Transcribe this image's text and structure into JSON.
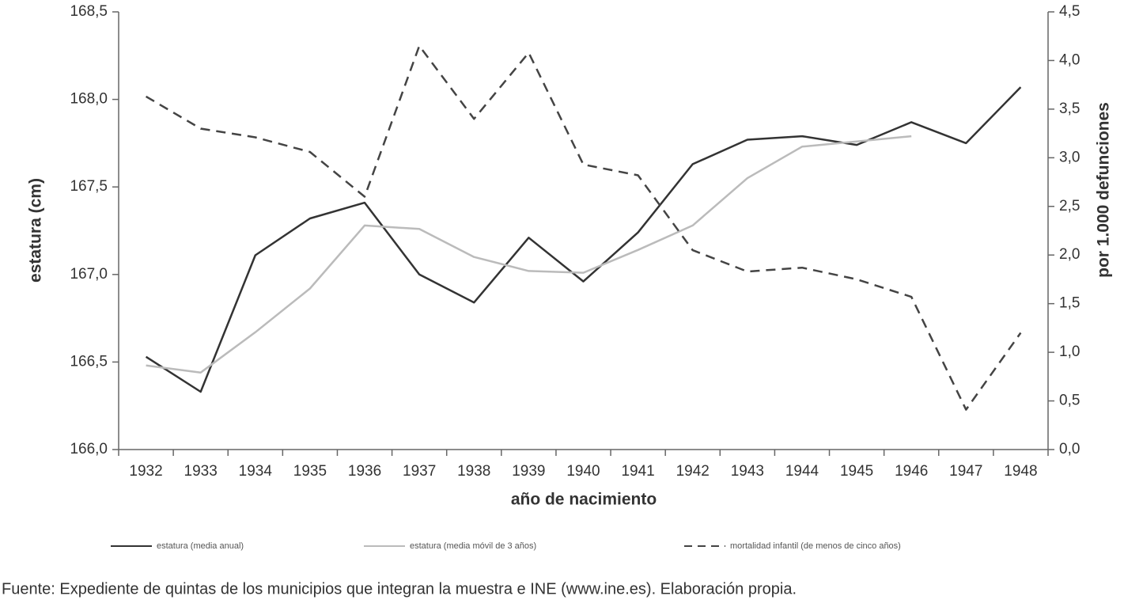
{
  "chart_data": {
    "type": "line",
    "categories": [
      "1932",
      "1933",
      "1934",
      "1935",
      "1936",
      "1937",
      "1938",
      "1939",
      "1940",
      "1941",
      "1942",
      "1943",
      "1944",
      "1945",
      "1946",
      "1947",
      "1948"
    ],
    "x_label": "año de nacimiento",
    "y_label": "estatura (cm)",
    "y2_label": "por 1.000 defunciones",
    "ylim": [
      166.0,
      168.5
    ],
    "yticks": [
      {
        "value": 166.0,
        "label": "166,0"
      },
      {
        "value": 166.5,
        "label": "166,5"
      },
      {
        "value": 167.0,
        "label": "167,0"
      },
      {
        "value": 167.5,
        "label": "167,5"
      },
      {
        "value": 168.0,
        "label": "168,0"
      },
      {
        "value": 168.5,
        "label": "168,5"
      }
    ],
    "y2lim": [
      0,
      4.5
    ],
    "y2ticks": [
      {
        "value": 0,
        "label": "0,0"
      },
      {
        "value": 0.5,
        "label": "0,5"
      },
      {
        "value": 1,
        "label": "1,0"
      },
      {
        "value": 1.5,
        "label": "1,5"
      },
      {
        "value": 2,
        "label": "2,0"
      },
      {
        "value": 2.5,
        "label": "2,5"
      },
      {
        "value": 3,
        "label": "3,0"
      },
      {
        "value": 3.5,
        "label": "3,5"
      },
      {
        "value": 4,
        "label": "4,0"
      },
      {
        "value": 4.5,
        "label": "4,5"
      }
    ],
    "series": [
      {
        "name": "estatura (media anual)",
        "color": "#333333",
        "style": "solid",
        "values": [
          166.53,
          166.33,
          167.11,
          167.32,
          167.41,
          167.0,
          166.84,
          167.21,
          166.96,
          167.24,
          167.63,
          167.77,
          167.79,
          167.74,
          167.87,
          167.75,
          168.07
        ]
      },
      {
        "name": "estatura (media móvil de 3 años)",
        "color": "#bbbbbb",
        "style": "solid",
        "values": [
          166.48,
          166.44,
          166.67,
          166.92,
          167.28,
          167.26,
          167.1,
          167.02,
          167.01,
          167.14,
          167.28,
          167.55,
          167.73,
          167.76,
          167.79,
          null,
          null
        ]
      },
      {
        "name": "mortalidad infantil (de menos de cinco años)",
        "color": "#444444",
        "style": "dashed",
        "axis": "y2",
        "values": [
          3.63,
          3.3,
          3.21,
          3.06,
          2.6,
          4.15,
          3.4,
          4.08,
          2.93,
          2.82,
          2.05,
          1.83,
          1.87,
          1.75,
          1.57,
          0.41,
          1.2
        ]
      }
    ],
    "source": "Fuente: Expediente de quintas de los municipios que integran la muestra e INE (www.ine.es). Elaboración propia."
  }
}
